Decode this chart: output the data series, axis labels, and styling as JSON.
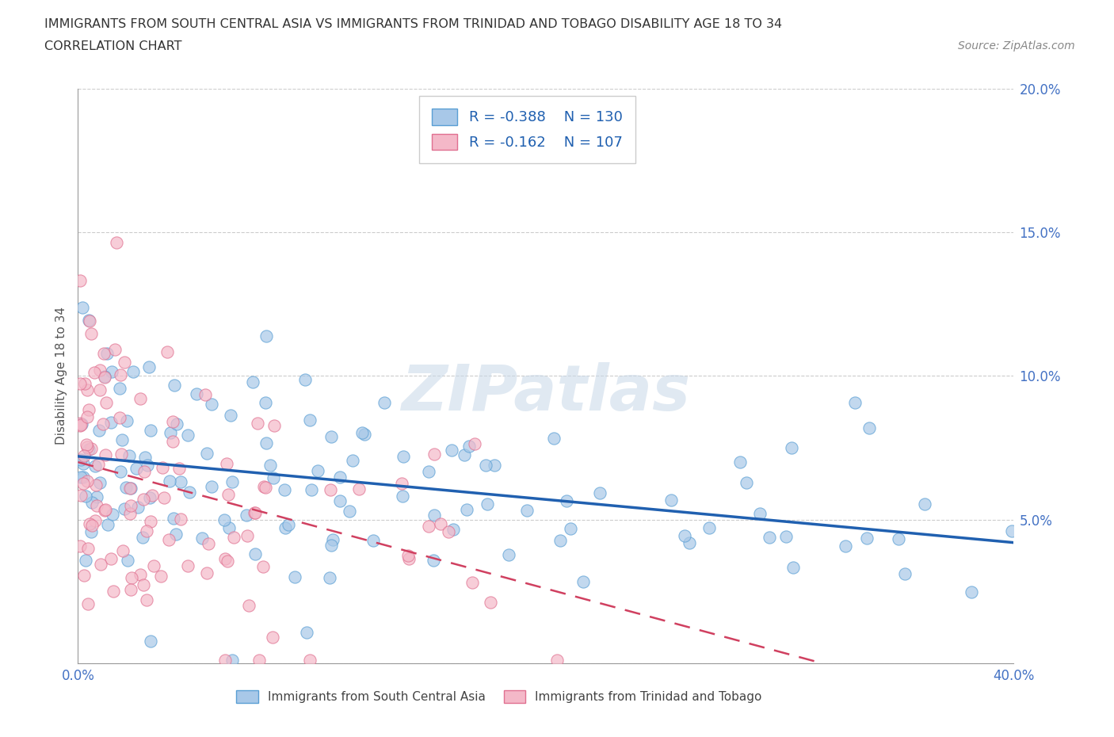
{
  "title_line1": "IMMIGRANTS FROM SOUTH CENTRAL ASIA VS IMMIGRANTS FROM TRINIDAD AND TOBAGO DISABILITY AGE 18 TO 34",
  "title_line2": "CORRELATION CHART",
  "source": "Source: ZipAtlas.com",
  "legend_blue_r": "-0.388",
  "legend_blue_n": "130",
  "legend_pink_r": "-0.162",
  "legend_pink_n": "107",
  "legend_label_blue": "Immigrants from South Central Asia",
  "legend_label_pink": "Immigrants from Trinidad and Tobago",
  "blue_color": "#a8c8e8",
  "blue_edge_color": "#5a9fd4",
  "pink_color": "#f4b8c8",
  "pink_edge_color": "#e07090",
  "blue_line_color": "#2060b0",
  "pink_line_color": "#d04060",
  "watermark": "ZIPatlas",
  "blue_R": -0.388,
  "pink_R": -0.162,
  "xmax": 0.4,
  "ymax": 0.2,
  "blue_intercept": 0.072,
  "blue_slope": -0.075,
  "pink_intercept": 0.07,
  "pink_slope": -0.22
}
